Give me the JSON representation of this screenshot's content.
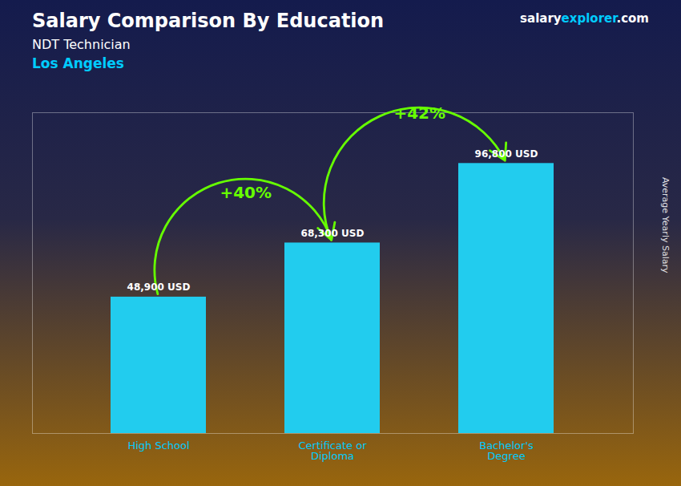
{
  "chart_data": {
    "type": "bar",
    "title": "Salary Comparison By Education",
    "subtitle": [
      "NDT Technician",
      "Los Angeles"
    ],
    "credit": [
      "salary",
      "explorer",
      ".com"
    ],
    "ylabel": "Average Yearly Salary",
    "categories": [
      "High School",
      "Certificate or\nDiploma",
      "Bachelor's\nDegree"
    ],
    "values": [
      48900,
      68300,
      96800
    ],
    "value_labels": [
      "48,900 USD",
      "68,300 USD",
      "96,800 USD"
    ],
    "data_labels": true,
    "annotations": [
      "+40%",
      "+42%"
    ],
    "color": "#22CCEE",
    "ylim": [
      0,
      115000
    ],
    "yticks": [],
    "tick_labels": "x",
    "grid": false
  }
}
